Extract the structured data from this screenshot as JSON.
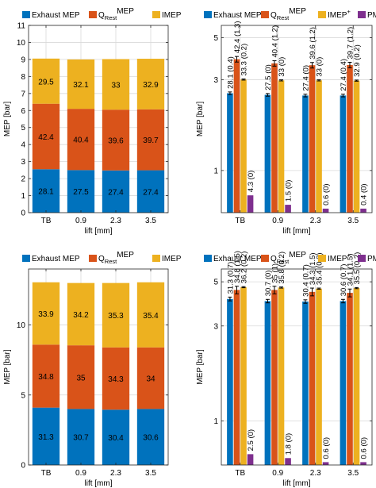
{
  "figure": {
    "colors": {
      "exhaust": "#0072BD",
      "qrest": "#D95319",
      "imep": "#EDB120",
      "pmep": "#7E2F8E",
      "grid": "#d9d9d9",
      "axis": "#262626"
    }
  },
  "chart_data": [
    {
      "id": "top-left",
      "type": "bar",
      "stacked": true,
      "xlabel": "lift [mm]",
      "ylabel": "MEP [bar]",
      "ylim": [
        0,
        11
      ],
      "yticks": [
        "0",
        "1",
        "2",
        "3",
        "4",
        "5",
        "6",
        "7",
        "8",
        "9",
        "10",
        "11"
      ],
      "ytick_values": [
        0,
        1,
        2,
        3,
        4,
        5,
        6,
        7,
        8,
        9,
        10,
        11
      ],
      "categories": [
        "TB",
        "0.9",
        "2.3",
        "3.5"
      ],
      "grid": true,
      "legend": "top",
      "legend_entries": [
        {
          "key": "exhaust",
          "label": "Exhaust MEP"
        },
        {
          "key": "qrest",
          "label": "Q",
          "sub": "Rest",
          "sup": "MEP"
        },
        {
          "key": "imep",
          "label": "IMEP"
        }
      ],
      "series": [
        {
          "key": "exhaust",
          "name": "Exhaust MEP",
          "values": [
            2.55,
            2.5,
            2.48,
            2.49
          ],
          "labels": [
            "28.1",
            "27.5",
            "27.4",
            "27.4"
          ]
        },
        {
          "key": "qrest",
          "name": "QRest MEP",
          "values": [
            3.85,
            3.6,
            3.57,
            3.58
          ],
          "labels": [
            "42.4",
            "40.4",
            "39.6",
            "39.7"
          ]
        },
        {
          "key": "imep",
          "name": "IMEP",
          "values": [
            2.65,
            2.9,
            2.97,
            2.97
          ],
          "labels": [
            "29.5",
            "32.1",
            "33",
            "32.9"
          ]
        }
      ]
    },
    {
      "id": "top-right",
      "type": "bar",
      "stacked": false,
      "log_y": true,
      "xlabel": "lift [mm]",
      "ylabel": "MEP [bar]",
      "ylim": [
        0.6,
        5.8
      ],
      "yticks": [
        "1",
        "3",
        "5"
      ],
      "ytick_values": [
        1,
        3,
        5
      ],
      "categories": [
        "TB",
        "0.9",
        "2.3",
        "3.5"
      ],
      "grid": true,
      "legend": "top",
      "legend_entries": [
        {
          "key": "exhaust",
          "label": "Exhaust MEP"
        },
        {
          "key": "qrest",
          "label": "Q",
          "sub": "Rest",
          "sup": "MEP"
        },
        {
          "key": "imep",
          "label": "IMEP",
          "sup": "+"
        },
        {
          "key": "pmep",
          "label": "PMEP"
        }
      ],
      "series": [
        {
          "key": "exhaust",
          "name": "Exhaust MEP",
          "values": [
            2.55,
            2.5,
            2.48,
            2.48
          ],
          "errors": [
            0.04,
            0.04,
            0.04,
            0.04
          ],
          "labels": [
            "28.1 (0.4)",
            "27.5 (0)",
            "27.4 (0)",
            "27.4 (0.4)"
          ]
        },
        {
          "key": "qrest",
          "name": "QRest MEP",
          "values": [
            3.85,
            3.66,
            3.58,
            3.59
          ],
          "errors": [
            0.13,
            0.12,
            0.12,
            0.12
          ],
          "labels": [
            "42.4 (1.3)",
            "40.4 (1.2)",
            "39.6 (1.2)",
            "39.7 (1.2)"
          ]
        },
        {
          "key": "imep",
          "name": "IMEP+",
          "values": [
            3.01,
            2.98,
            2.98,
            2.97
          ],
          "errors": [
            0.02,
            0.02,
            0.02,
            0.02
          ],
          "labels": [
            "33.3 (0.2)",
            "33 (0)",
            "33 (0)",
            "32.9 (0.2)"
          ]
        },
        {
          "key": "pmep",
          "name": "PMEP",
          "values": [
            0.74,
            0.66,
            0.63,
            0.63
          ],
          "labels": [
            "4.3 (0)",
            "1.5 (0)",
            "0.6 (0)",
            "0.4 (0)"
          ]
        }
      ]
    },
    {
      "id": "bottom-left",
      "type": "bar",
      "stacked": true,
      "xlabel": "lift [mm]",
      "ylabel": "MEP [bar]",
      "ylim": [
        0,
        14
      ],
      "yticks": [
        "0",
        "5",
        "10"
      ],
      "ytick_values": [
        0,
        5,
        10
      ],
      "categories": [
        "TB",
        "0.9",
        "2.3",
        "3.5"
      ],
      "grid": true,
      "legend": "top",
      "legend_entries": [
        {
          "key": "exhaust",
          "label": "Exhaust MEP"
        },
        {
          "key": "qrest",
          "label": "Q",
          "sub": "Rest",
          "sup": "MEP"
        },
        {
          "key": "imep",
          "label": "IMEP"
        }
      ],
      "series": [
        {
          "key": "exhaust",
          "name": "Exhaust MEP",
          "values": [
            4.1,
            4.0,
            3.95,
            4.0
          ],
          "labels": [
            "31.3",
            "30.7",
            "30.4",
            "30.6"
          ]
        },
        {
          "key": "qrest",
          "name": "QRest MEP",
          "values": [
            4.5,
            4.55,
            4.45,
            4.4
          ],
          "labels": [
            "34.8",
            "35",
            "34.3",
            "34"
          ]
        },
        {
          "key": "imep",
          "name": "IMEP",
          "values": [
            4.45,
            4.45,
            4.6,
            4.65
          ],
          "labels": [
            "33.9",
            "34.2",
            "35.3",
            "35.4"
          ]
        }
      ]
    },
    {
      "id": "bottom-right",
      "type": "bar",
      "stacked": false,
      "log_y": true,
      "xlabel": "lift [mm]",
      "ylabel": "MEP [bar]",
      "ylim": [
        0.6,
        5.8
      ],
      "yticks": [
        "1",
        "3",
        "5"
      ],
      "ytick_values": [
        1,
        3,
        5
      ],
      "categories": [
        "TB",
        "0.9",
        "2.3",
        "3.5"
      ],
      "grid": true,
      "legend": "top",
      "legend_entries": [
        {
          "key": "exhaust",
          "label": "Exhaust MEP"
        },
        {
          "key": "qrest",
          "label": "Q",
          "sub": "Rest",
          "sup": "MEP"
        },
        {
          "key": "imep",
          "label": "IMEP",
          "sup": "+"
        },
        {
          "key": "pmep",
          "label": "PMEP"
        }
      ],
      "series": [
        {
          "key": "exhaust",
          "name": "Exhaust MEP",
          "values": [
            4.1,
            4.0,
            3.98,
            4.0
          ],
          "errors": [
            0.09,
            0.08,
            0.08,
            0.08
          ],
          "labels": [
            "31.3 (0.7)",
            "30.7 (0)",
            "30.4 (0.7)",
            "30.6 (0.7)"
          ]
        },
        {
          "key": "qrest",
          "name": "QRest MEP",
          "values": [
            4.55,
            4.55,
            4.45,
            4.4
          ],
          "errors": [
            0.2,
            0.2,
            0.2,
            0.2
          ],
          "labels": [
            "34.8 (1.5)",
            "35 (1)",
            "34.3 (1.5)",
            "34.1 (1.5)"
          ]
        },
        {
          "key": "imep",
          "name": "IMEP+",
          "values": [
            4.7,
            4.68,
            4.62,
            4.65
          ],
          "errors": [
            0.03,
            0.03,
            0.03,
            0.03
          ],
          "labels": [
            "36.2 (0.2)",
            "35.8 (0.2)",
            "35.4 (0.2)",
            "35.5 (0.2)"
          ]
        },
        {
          "key": "pmep",
          "name": "PMEP",
          "values": [
            0.68,
            0.65,
            0.62,
            0.62
          ],
          "labels": [
            "2.5 (0)",
            "1.8 (0)",
            "0.6 (0)",
            "0.6 (0)"
          ]
        }
      ]
    }
  ]
}
